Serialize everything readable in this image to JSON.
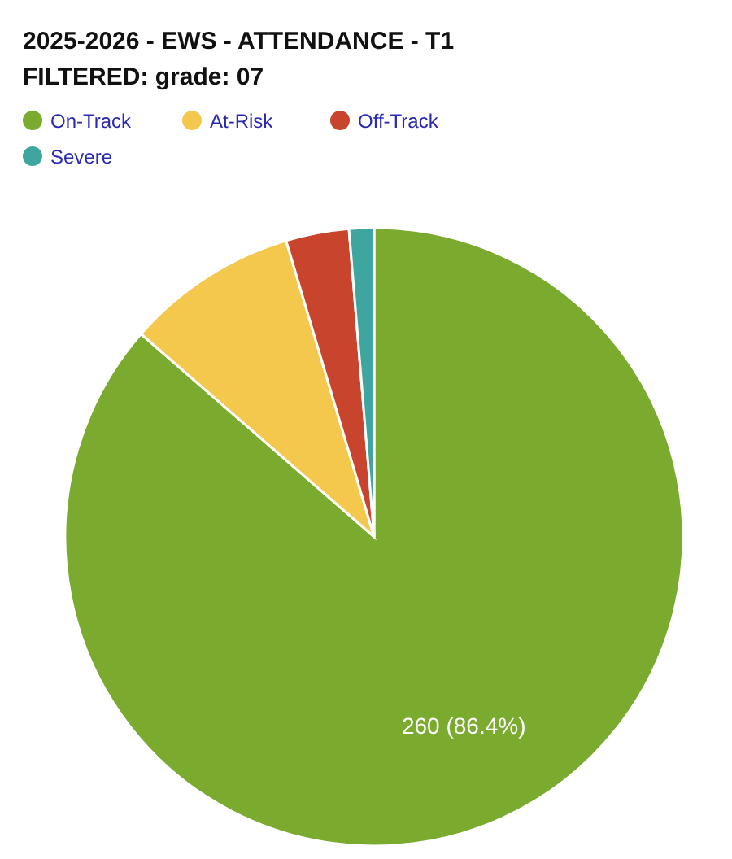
{
  "chart_data": {
    "type": "pie",
    "title": "2025-2026 - EWS - ATTENDANCE - T1",
    "subtitle": "FILTERED: grade: 07",
    "categories": [
      "On-Track",
      "At-Risk",
      "Off-Track",
      "Severe"
    ],
    "values": [
      86.4,
      9.0,
      3.3,
      1.3
    ],
    "colors": [
      "#7aab2e",
      "#f4c84c",
      "#c9442c",
      "#3fa59f"
    ],
    "value_labels": [
      "260 (86.4%)",
      null,
      null,
      null
    ],
    "legend": "top left"
  }
}
